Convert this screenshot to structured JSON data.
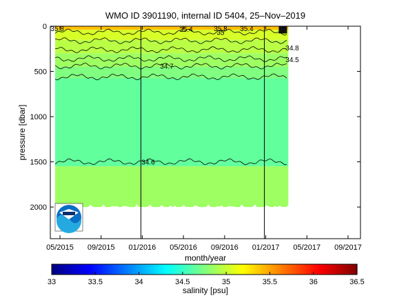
{
  "chart_data": {
    "type": "heatmap",
    "title": "WMO ID 3901190, internal ID 5404, 25–Nov–2019",
    "xlabel": "month/year",
    "ylabel": "pressure [dbar]",
    "colorbar_label": "salinity [psu]",
    "x_ticks": [
      "05/2015",
      "09/2015",
      "01/2016",
      "05/2016",
      "09/2016",
      "01/2017",
      "05/2017",
      "09/2017"
    ],
    "y_ticks": [
      "0",
      "500",
      "1000",
      "1500",
      "2000"
    ],
    "ylim": [
      2350,
      0
    ],
    "y_reversed": true,
    "colorbar_ticks": [
      "33",
      "33.5",
      "34",
      "34.5",
      "35",
      "35.5",
      "36",
      "36.5"
    ],
    "colorbar_range": [
      33,
      36.5
    ],
    "colormap": "jet",
    "year_dividers": [
      "01/2016",
      "01/2017"
    ],
    "data_end": "03/2017",
    "max_pressure": 2000,
    "layers": [
      {
        "top": 0,
        "bottom": 40,
        "salinity": 35.4
      },
      {
        "top": 40,
        "bottom": 150,
        "salinity": 35.05
      },
      {
        "top": 150,
        "bottom": 300,
        "salinity": 34.95
      },
      {
        "top": 300,
        "bottom": 450,
        "salinity": 34.85
      },
      {
        "top": 450,
        "bottom": 580,
        "salinity": 34.75
      },
      {
        "top": 580,
        "bottom": 1550,
        "salinity": 34.65
      },
      {
        "top": 1550,
        "bottom": 2000,
        "salinity": 34.85
      }
    ],
    "contours": [
      {
        "level": "35",
        "pressure": 65
      },
      {
        "level": "",
        "pressure": 160
      },
      {
        "level": "",
        "pressure": 260
      },
      {
        "level": "",
        "pressure": 360
      },
      {
        "level": "34.7",
        "pressure": 440
      },
      {
        "level": "",
        "pressure": 560
      },
      {
        "level": "34.6",
        "pressure": 1500
      }
    ],
    "annotations": [
      "35.8",
      "35.4",
      "35.3",
      "35.4",
      "34.8",
      "34.5"
    ],
    "logo": "noaa-logo"
  }
}
